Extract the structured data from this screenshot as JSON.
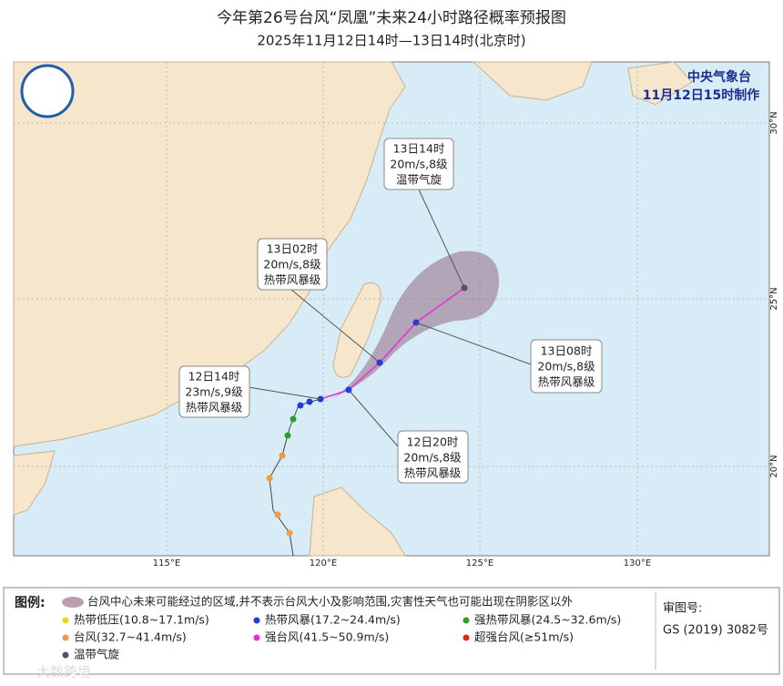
{
  "header": {
    "title": "今年第26号台风“凤凰”未来24小时路径概率预报图",
    "subtitle": "2025年11月12日14时—13日14时(北京时)"
  },
  "agency": {
    "name": "中央气象台",
    "issued": "11月12日15时制作"
  },
  "forecast_labels": [
    {
      "time": "13日14时",
      "wind": "20m/s,8级",
      "level": "温带气旋"
    },
    {
      "time": "13日02时",
      "wind": "20m/s,8级",
      "level": "热带风暴级"
    },
    {
      "time": "13日08时",
      "wind": "20m/s,8级",
      "level": "热带风暴级"
    },
    {
      "time": "12日20时",
      "wind": "20m/s,8级",
      "level": "热带风暴级"
    },
    {
      "time": "12日14时",
      "wind": "23m/s,9级",
      "level": "热带风暴级"
    }
  ],
  "axis_labels": {
    "longitude": [
      "115°E",
      "120°E",
      "125°E",
      "130°E"
    ],
    "latitude": [
      "30°N",
      "25°N",
      "20°N"
    ]
  },
  "legend": {
    "title": "图例:",
    "cone": "台风中心未来可能经过的区域,并不表示台风大小及影响范围,灾害性天气也可能出现在阴影区以外",
    "items": [
      {
        "name": "热带低压(10.8~17.1m/s)",
        "color": "#f2d21b"
      },
      {
        "name": "热带风暴(17.2~24.4m/s)",
        "color": "#1f3bd8"
      },
      {
        "name": "强热带风暴(24.5~32.6m/s)",
        "color": "#2aa02a"
      },
      {
        "name": "台风(32.7~41.4m/s)",
        "color": "#f59a42"
      },
      {
        "name": "强台风(41.5~50.9m/s)",
        "color": "#e82fd6"
      },
      {
        "name": "超强台风(≥51m/s)",
        "color": "#e8251d"
      },
      {
        "name": "温带气旋",
        "color": "#555555"
      }
    ]
  },
  "review": {
    "label": "审图号:",
    "number": "GS (2019) 3082号"
  },
  "watermark": "大数跨境"
}
